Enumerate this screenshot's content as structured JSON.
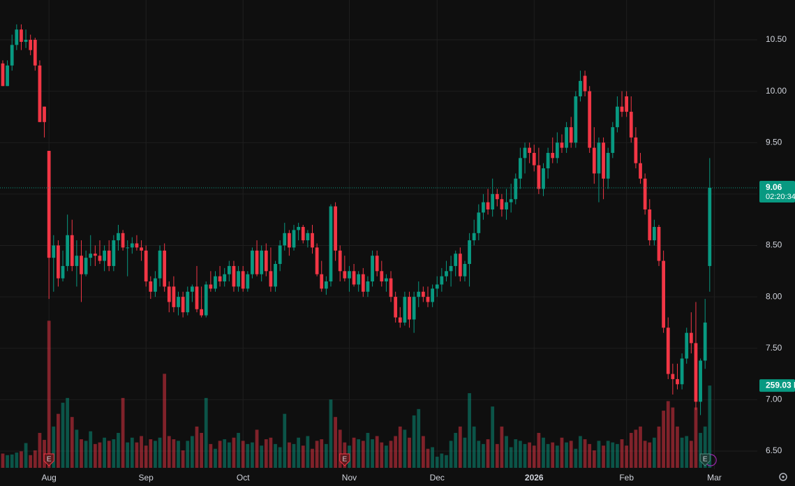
{
  "chart_data": {
    "type": "candlestick",
    "ylim": [
      6.337,
      10.887
    ],
    "yticks": [
      {
        "value": 6.5,
        "label": "6.50"
      },
      {
        "value": 7,
        "label": "7.00"
      },
      {
        "value": 7.5,
        "label": "7.50"
      },
      {
        "value": 8,
        "label": "8.00"
      },
      {
        "value": 8.5,
        "label": "8.50"
      },
      {
        "value": 9,
        "label": "9.00"
      },
      {
        "value": 9.5,
        "label": "9.50"
      },
      {
        "value": 10,
        "label": "10.00"
      },
      {
        "value": 10.5,
        "label": "10.50"
      }
    ],
    "xlim": [
      -0.6,
      163.3
    ],
    "xticks": [
      {
        "value": 10,
        "label": "Aug"
      },
      {
        "value": 31,
        "label": "Sep"
      },
      {
        "value": 52,
        "label": "Oct"
      },
      {
        "value": 75,
        "label": "Nov"
      },
      {
        "value": 94,
        "label": "Dec"
      },
      {
        "value": 115,
        "label": "2026"
      },
      {
        "value": 135,
        "label": "Feb"
      },
      {
        "value": 154,
        "label": "Mar"
      }
    ],
    "up_color": "#089981",
    "down_color": "#f23645",
    "grid": true,
    "last_price_label": "9.06",
    "countdown": "02:20:34",
    "vlim": [
      0,
      1000
    ],
    "last_volume_label": "259.03 K",
    "events": [
      {
        "index": 10,
        "label": "E"
      },
      {
        "index": 74,
        "label": "E"
      },
      {
        "index": 152,
        "label": "E"
      }
    ],
    "x": [
      0,
      1,
      2,
      3,
      4,
      5,
      6,
      7,
      8,
      9,
      10,
      11,
      12,
      13,
      14,
      15,
      16,
      17,
      18,
      19,
      20,
      21,
      22,
      23,
      24,
      25,
      26,
      27,
      28,
      29,
      30,
      31,
      32,
      33,
      34,
      35,
      36,
      37,
      38,
      39,
      40,
      41,
      42,
      43,
      44,
      45,
      46,
      47,
      48,
      49,
      50,
      51,
      52,
      53,
      54,
      55,
      56,
      57,
      58,
      59,
      60,
      61,
      62,
      63,
      64,
      65,
      66,
      67,
      68,
      69,
      70,
      71,
      72,
      73,
      74,
      75,
      76,
      77,
      78,
      79,
      80,
      81,
      82,
      83,
      84,
      85,
      86,
      87,
      88,
      89,
      90,
      91,
      92,
      93,
      94,
      95,
      96,
      97,
      98,
      99,
      100,
      101,
      102,
      103,
      104,
      105,
      106,
      107,
      108,
      109,
      110,
      111,
      112,
      113,
      114,
      115,
      116,
      117,
      118,
      119,
      120,
      121,
      122,
      123,
      124,
      125,
      126,
      127,
      128,
      129,
      130,
      131,
      132,
      133,
      134,
      135,
      136,
      137,
      138,
      139,
      140,
      141,
      142,
      143,
      144,
      145,
      146,
      147,
      148,
      149,
      150,
      151,
      152,
      153
    ],
    "ohlc": [
      [
        10.27,
        10.3,
        10.05,
        10.05
      ],
      [
        10.05,
        10.3,
        10.05,
        10.25
      ],
      [
        10.25,
        10.55,
        10.2,
        10.45
      ],
      [
        10.45,
        10.65,
        10.4,
        10.6
      ],
      [
        10.6,
        10.65,
        10.4,
        10.48
      ],
      [
        10.48,
        10.6,
        10.42,
        10.5
      ],
      [
        10.5,
        10.55,
        10.35,
        10.4
      ],
      [
        10.5,
        10.52,
        10.2,
        10.25
      ],
      [
        10.25,
        10.3,
        9.7,
        9.7
      ],
      [
        9.85,
        9.85,
        9.55,
        9.7
      ],
      [
        9.42,
        9.42,
        7.98,
        8.38
      ],
      [
        8.38,
        8.6,
        8.05,
        8.5
      ],
      [
        8.5,
        8.55,
        8.1,
        8.18
      ],
      [
        8.18,
        8.45,
        8.15,
        8.3
      ],
      [
        8.3,
        8.8,
        8.25,
        8.6
      ],
      [
        8.6,
        8.75,
        8.25,
        8.3
      ],
      [
        8.3,
        8.55,
        8.1,
        8.4
      ],
      [
        8.4,
        8.55,
        7.95,
        8.22
      ],
      [
        8.22,
        8.45,
        8.2,
        8.38
      ],
      [
        8.38,
        8.6,
        8.3,
        8.42
      ],
      [
        8.42,
        8.5,
        8.3,
        8.4
      ],
      [
        8.4,
        8.55,
        8.32,
        8.35
      ],
      [
        8.35,
        8.5,
        8.25,
        8.45
      ],
      [
        8.45,
        8.55,
        8.25,
        8.3
      ],
      [
        8.3,
        8.6,
        8.25,
        8.55
      ],
      [
        8.55,
        8.7,
        8.45,
        8.62
      ],
      [
        8.62,
        8.65,
        8.45,
        8.48
      ],
      [
        8.48,
        8.55,
        8.2,
        8.48
      ],
      [
        8.48,
        8.58,
        8.42,
        8.52
      ],
      [
        8.52,
        8.6,
        8.45,
        8.48
      ],
      [
        8.48,
        8.55,
        8.35,
        8.45
      ],
      [
        8.45,
        8.5,
        8.1,
        8.15
      ],
      [
        8.15,
        8.2,
        7.98,
        8.05
      ],
      [
        8.05,
        8.25,
        8.0,
        8.18
      ],
      [
        8.18,
        8.5,
        8.1,
        8.45
      ],
      [
        8.45,
        8.52,
        8.05,
        8.1
      ],
      [
        8.1,
        8.15,
        7.85,
        7.95
      ],
      [
        8.1,
        8.2,
        7.85,
        7.9
      ],
      [
        7.9,
        8.05,
        7.82,
        8.0
      ],
      [
        8.0,
        8.05,
        7.8,
        7.85
      ],
      [
        7.85,
        8.1,
        7.82,
        8.05
      ],
      [
        8.05,
        8.12,
        7.95,
        8.1
      ],
      [
        8.1,
        8.3,
        7.85,
        7.88
      ],
      [
        7.88,
        8.1,
        7.8,
        7.82
      ],
      [
        7.82,
        8.15,
        7.8,
        8.12
      ],
      [
        8.12,
        8.25,
        8.05,
        8.08
      ],
      [
        8.08,
        8.25,
        8.05,
        8.2
      ],
      [
        8.2,
        8.3,
        8.1,
        8.15
      ],
      [
        8.15,
        8.28,
        8.1,
        8.22
      ],
      [
        8.22,
        8.35,
        8.15,
        8.3
      ],
      [
        8.3,
        8.35,
        8.05,
        8.1
      ],
      [
        8.1,
        8.3,
        8.05,
        8.25
      ],
      [
        8.25,
        8.3,
        8.05,
        8.08
      ],
      [
        8.08,
        8.25,
        8.05,
        8.22
      ],
      [
        8.22,
        8.48,
        8.18,
        8.45
      ],
      [
        8.45,
        8.55,
        8.2,
        8.22
      ],
      [
        8.22,
        8.5,
        8.15,
        8.45
      ],
      [
        8.45,
        8.52,
        8.2,
        8.25
      ],
      [
        8.25,
        8.48,
        8.05,
        8.1
      ],
      [
        8.1,
        8.35,
        8.05,
        8.32
      ],
      [
        8.32,
        8.55,
        8.25,
        8.5
      ],
      [
        8.5,
        8.72,
        8.45,
        8.62
      ],
      [
        8.62,
        8.65,
        8.4,
        8.48
      ],
      [
        8.48,
        8.7,
        8.45,
        8.65
      ],
      [
        8.65,
        8.72,
        8.55,
        8.68
      ],
      [
        8.68,
        8.7,
        8.52,
        8.55
      ],
      [
        8.55,
        8.65,
        8.48,
        8.62
      ],
      [
        8.62,
        8.7,
        8.42,
        8.48
      ],
      [
        8.48,
        8.52,
        8.2,
        8.22
      ],
      [
        8.22,
        8.35,
        8.05,
        8.08
      ],
      [
        8.08,
        8.2,
        8.02,
        8.15
      ],
      [
        8.15,
        8.9,
        8.1,
        8.88
      ],
      [
        8.88,
        8.92,
        8.35,
        8.45
      ],
      [
        8.45,
        8.5,
        8.15,
        8.25
      ],
      [
        8.25,
        8.4,
        8.15,
        8.18
      ],
      [
        8.18,
        8.3,
        8.05,
        8.25
      ],
      [
        8.25,
        8.32,
        8.1,
        8.12
      ],
      [
        8.12,
        8.25,
        8.05,
        8.22
      ],
      [
        8.22,
        8.28,
        8.0,
        8.05
      ],
      [
        8.05,
        8.2,
        8.0,
        8.15
      ],
      [
        8.15,
        8.45,
        8.1,
        8.4
      ],
      [
        8.4,
        8.45,
        8.2,
        8.25
      ],
      [
        8.25,
        8.35,
        8.1,
        8.15
      ],
      [
        8.15,
        8.22,
        8.05,
        8.18
      ],
      [
        8.18,
        8.25,
        7.95,
        8.0
      ],
      [
        8.0,
        8.05,
        7.75,
        7.8
      ],
      [
        7.8,
        7.9,
        7.7,
        7.75
      ],
      [
        7.75,
        8.05,
        7.72,
        8.0
      ],
      [
        8.0,
        8.05,
        7.7,
        7.78
      ],
      [
        7.78,
        8.05,
        7.65,
        8.0
      ],
      [
        8.0,
        8.15,
        7.9,
        8.05
      ],
      [
        8.05,
        8.1,
        7.95,
        8.0
      ],
      [
        8.0,
        8.1,
        7.9,
        7.95
      ],
      [
        7.95,
        8.12,
        7.9,
        8.08
      ],
      [
        8.08,
        8.2,
        8.0,
        8.12
      ],
      [
        8.12,
        8.28,
        8.05,
        8.2
      ],
      [
        8.2,
        8.35,
        8.15,
        8.25
      ],
      [
        8.25,
        8.4,
        8.1,
        8.3
      ],
      [
        8.3,
        8.45,
        8.2,
        8.42
      ],
      [
        8.42,
        8.48,
        8.15,
        8.2
      ],
      [
        8.2,
        8.35,
        8.15,
        8.32
      ],
      [
        8.32,
        8.62,
        8.1,
        8.55
      ],
      [
        8.55,
        8.75,
        8.5,
        8.62
      ],
      [
        8.62,
        8.9,
        8.55,
        8.82
      ],
      [
        8.82,
        9.0,
        8.75,
        8.92
      ],
      [
        8.92,
        9.05,
        8.8,
        8.85
      ],
      [
        8.85,
        9.15,
        8.78,
        9.0
      ],
      [
        9.0,
        9.05,
        8.88,
        8.95
      ],
      [
        8.95,
        9.0,
        8.78,
        8.85
      ],
      [
        8.85,
        9.05,
        8.75,
        8.92
      ],
      [
        8.92,
        9.1,
        8.82,
        8.95
      ],
      [
        8.95,
        9.2,
        8.9,
        9.15
      ],
      [
        9.15,
        9.45,
        9.05,
        9.35
      ],
      [
        9.35,
        9.5,
        9.2,
        9.45
      ],
      [
        9.45,
        9.5,
        9.3,
        9.4
      ],
      [
        9.4,
        9.48,
        9.22,
        9.28
      ],
      [
        9.28,
        9.45,
        9.0,
        9.05
      ],
      [
        9.05,
        9.3,
        8.98,
        9.25
      ],
      [
        9.25,
        9.45,
        9.15,
        9.4
      ],
      [
        9.4,
        9.55,
        9.3,
        9.35
      ],
      [
        9.35,
        9.6,
        9.3,
        9.5
      ],
      [
        9.5,
        9.58,
        9.4,
        9.45
      ],
      [
        9.45,
        9.7,
        9.4,
        9.65
      ],
      [
        9.65,
        9.75,
        9.45,
        9.5
      ],
      [
        9.5,
        10.0,
        9.45,
        9.95
      ],
      [
        9.95,
        10.2,
        9.9,
        10.1
      ],
      [
        10.15,
        10.2,
        9.95,
        10.0
      ],
      [
        10.0,
        10.05,
        9.4,
        9.45
      ],
      [
        9.45,
        9.65,
        9.1,
        9.2
      ],
      [
        9.2,
        9.55,
        8.92,
        9.5
      ],
      [
        9.5,
        9.55,
        8.95,
        9.15
      ],
      [
        9.15,
        9.45,
        9.05,
        9.4
      ],
      [
        9.4,
        9.7,
        9.35,
        9.65
      ],
      [
        9.65,
        9.95,
        9.6,
        9.85
      ],
      [
        9.85,
        10.0,
        9.75,
        9.8
      ],
      [
        9.95,
        10.0,
        9.75,
        9.8
      ],
      [
        9.8,
        9.95,
        9.5,
        9.55
      ],
      [
        9.55,
        9.65,
        9.25,
        9.3
      ],
      [
        9.3,
        9.4,
        9.1,
        9.15
      ],
      [
        9.15,
        9.2,
        8.8,
        8.85
      ],
      [
        8.85,
        8.95,
        8.5,
        8.55
      ],
      [
        8.55,
        8.75,
        8.5,
        8.68
      ],
      [
        8.68,
        8.7,
        8.3,
        8.35
      ],
      [
        8.35,
        8.45,
        7.65,
        7.7
      ],
      [
        7.7,
        7.8,
        7.2,
        7.25
      ],
      [
        7.25,
        7.35,
        7.05,
        7.2
      ],
      [
        7.2,
        7.35,
        7.1,
        7.15
      ],
      [
        7.15,
        7.45,
        7.1,
        7.4
      ],
      [
        7.4,
        7.7,
        7.35,
        7.65
      ],
      [
        7.65,
        7.85,
        7.45,
        7.55
      ],
      [
        7.55,
        7.95,
        6.9,
        6.98
      ],
      [
        6.98,
        7.4,
        6.85,
        7.38
      ],
      [
        7.38,
        7.98,
        7.3,
        7.75
      ],
      [
        8.3,
        9.35,
        8.05,
        9.06
      ]
    ],
    "volume": [
      45,
      40,
      42,
      48,
      52,
      78,
      40,
      55,
      110,
      88,
      463,
      130,
      170,
      205,
      220,
      160,
      120,
      90,
      85,
      115,
      75,
      80,
      95,
      85,
      90,
      110,
      220,
      80,
      95,
      80,
      100,
      70,
      90,
      85,
      95,
      296,
      100,
      90,
      85,
      55,
      85,
      100,
      130,
      110,
      220,
      75,
      60,
      85,
      90,
      80,
      95,
      110,
      85,
      75,
      80,
      120,
      70,
      90,
      95,
      75,
      65,
      170,
      80,
      75,
      95,
      70,
      100,
      60,
      85,
      90,
      75,
      215,
      160,
      120,
      80,
      70,
      95,
      90,
      85,
      110,
      90,
      100,
      80,
      70,
      85,
      100,
      130,
      120,
      95,
      165,
      185,
      100,
      60,
      65,
      35,
      45,
      40,
      85,
      110,
      130,
      95,
      235,
      130,
      85,
      75,
      90,
      193,
      75,
      130,
      100,
      65,
      90,
      85,
      75,
      80,
      70,
      110,
      95,
      75,
      80,
      70,
      95,
      80,
      85,
      60,
      100,
      90,
      75,
      55,
      85,
      70,
      85,
      80,
      75,
      90,
      70,
      110,
      120,
      130,
      85,
      80,
      95,
      130,
      180,
      210,
      190,
      130,
      95,
      100,
      85,
      190,
      110,
      130,
      259.03
    ]
  }
}
